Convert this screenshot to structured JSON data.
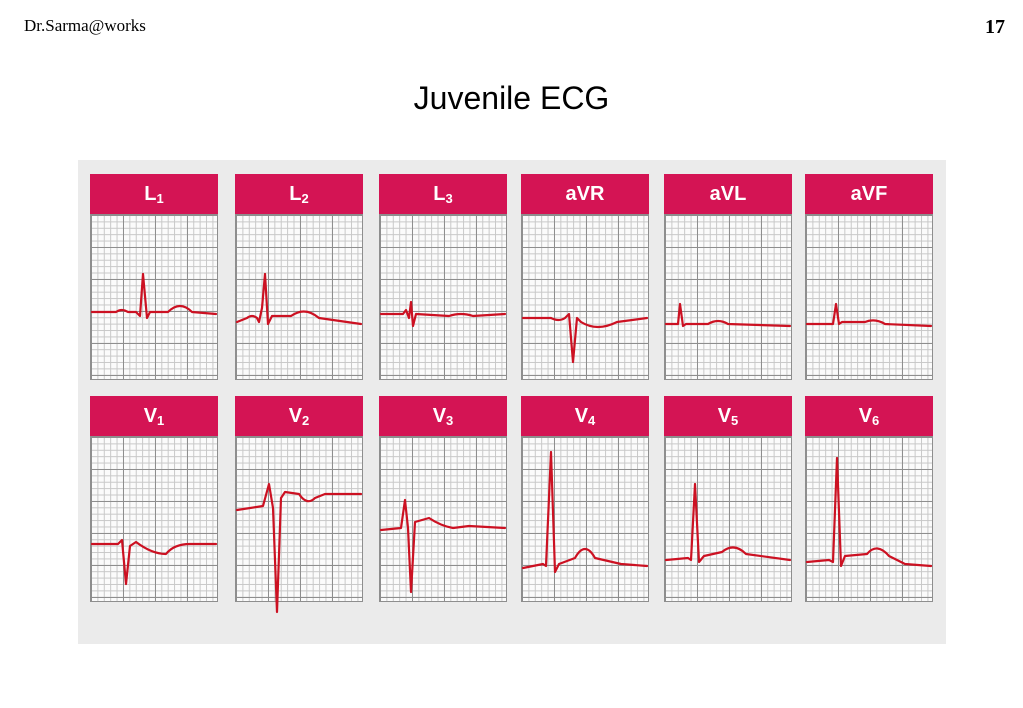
{
  "header": {
    "author": "Dr.Sarma@works",
    "page_number": "17"
  },
  "title": "Juvenile ECG",
  "ecg": {
    "trace_color": "#cc1122",
    "header_color": "#d41454",
    "leads": [
      {
        "id": "L1",
        "label": "L",
        "sub": "1"
      },
      {
        "id": "L2",
        "label": "L",
        "sub": "2"
      },
      {
        "id": "L3",
        "label": "L",
        "sub": "3"
      },
      {
        "id": "aVR",
        "label": "aVR",
        "sub": ""
      },
      {
        "id": "aVL",
        "label": "aVL",
        "sub": ""
      },
      {
        "id": "aVF",
        "label": "aVF",
        "sub": ""
      },
      {
        "id": "V1",
        "label": "V",
        "sub": "1"
      },
      {
        "id": "V2",
        "label": "V",
        "sub": "2"
      },
      {
        "id": "V3",
        "label": "V",
        "sub": "3"
      },
      {
        "id": "V4",
        "label": "V",
        "sub": "4"
      },
      {
        "id": "V5",
        "label": "V",
        "sub": "5"
      },
      {
        "id": "V6",
        "label": "V",
        "sub": "6"
      }
    ]
  }
}
